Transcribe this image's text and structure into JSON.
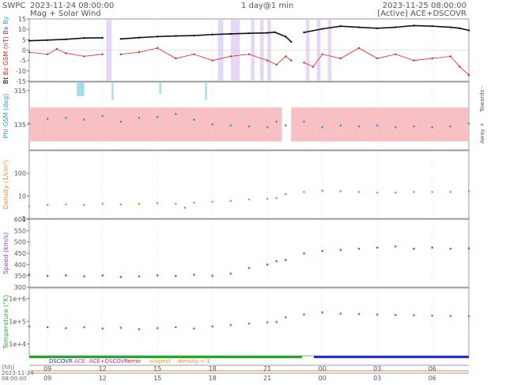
{
  "header": {
    "org": "SWPC",
    "start_time": "2023-11-24 08:00:00",
    "subtitle": "Mag + Solar Wind",
    "span": "1 day@1 min",
    "end_time": "2023-11-25 08:00:00",
    "active_source": "[Active] ACE+DSCOVR"
  },
  "legend": {
    "items": [
      {
        "label": "DSCOVR",
        "color": "#2233cc"
      },
      {
        "label": "ACE",
        "color": "#cc44cc"
      },
      {
        "label": "ACE+DSCOVR",
        "color": "#cc22cc"
      },
      {
        "label": "error",
        "color": "#cc2222"
      },
      {
        "label": "suspect",
        "color": "#dda000"
      },
      {
        "label": "density < 1",
        "color": "#ee8822"
      }
    ]
  },
  "time_axis": {
    "unit_label": "(hh)",
    "start_date": "2023-11-24",
    "start_clock": "08:00:00",
    "tick_labels": [
      "09",
      "12",
      "15",
      "18",
      "21",
      "00",
      "03",
      "06"
    ],
    "tick_hours": [
      1,
      4,
      7,
      10,
      13,
      16,
      19,
      22
    ],
    "total_hours": 24
  },
  "chart_data": [
    {
      "type": "line",
      "panel": "magnetic-field",
      "ylabels": [
        {
          "text": "Bt",
          "color": "#000000"
        },
        {
          "text": "Bz GSM (nT)",
          "color": "#dd2222"
        },
        {
          "text": "Bx",
          "color": "#6644cc"
        },
        {
          "text": "By",
          "color": "#33aadd"
        }
      ],
      "ylim": [
        -15,
        15
      ],
      "yticks": [
        -15,
        -10,
        -5,
        0,
        5,
        10,
        15
      ],
      "series": [
        {
          "name": "Bt",
          "color": "#111111",
          "x": [
            0,
            1,
            2,
            3,
            4,
            4.6,
            5,
            6,
            7,
            8,
            9,
            10,
            11,
            12,
            13,
            13.4,
            14,
            14.3,
            14.8,
            15,
            16,
            17,
            18,
            19,
            20,
            21,
            22,
            23,
            23.5,
            24
          ],
          "y": [
            4.5,
            4.8,
            5.2,
            5.8,
            5.9,
            null,
            5.4,
            6.0,
            6.5,
            6.8,
            7.0,
            7.5,
            7.8,
            8.1,
            8.3,
            8.6,
            6.5,
            4.0,
            null,
            8.5,
            10.2,
            11.5,
            11.0,
            10.5,
            11.0,
            11.8,
            11.5,
            11.0,
            10.5,
            9.5
          ]
        },
        {
          "name": "Bz GSM",
          "color": "#dd2222",
          "x": [
            0,
            1,
            1.5,
            2,
            3,
            4,
            4.6,
            5,
            6,
            7,
            8,
            9,
            10,
            11,
            12,
            13,
            13.5,
            14,
            14.3,
            14.8,
            15,
            15.5,
            16,
            17,
            18,
            19,
            20,
            21,
            22,
            23,
            23.5,
            24
          ],
          "y": [
            -1,
            -2,
            0.5,
            -1.5,
            -3,
            -2,
            null,
            -2,
            -1,
            1,
            -4,
            -2,
            -5,
            -3,
            -2,
            -5,
            -7,
            -3,
            -5,
            null,
            -6,
            -8,
            -2,
            -4,
            1,
            -4,
            -2,
            -5,
            -4,
            -3,
            -8,
            -12
          ]
        }
      ],
      "shaded_intervals": [
        [
          4.2,
          4.5
        ],
        [
          10.3,
          10.6
        ],
        [
          11.0,
          11.5
        ],
        [
          12.1,
          12.3
        ],
        [
          12.6,
          12.8
        ],
        [
          13.0,
          13.2
        ],
        [
          15.1,
          15.3
        ],
        [
          15.7,
          15.9
        ],
        [
          16.3,
          16.5
        ]
      ],
      "gaps": [
        [
          4.6,
          5.0
        ],
        [
          14.3,
          14.8
        ]
      ]
    },
    {
      "type": "scatter",
      "panel": "phi-angle",
      "ylabel": "Phi GSM (deg)",
      "ylim": [
        0,
        360
      ],
      "yticks": [
        135,
        315
      ],
      "right_labels": [
        "Towards -",
        "Away +"
      ],
      "away_band": [
        45,
        225
      ],
      "away_band_color": "#f9c0c4",
      "series": [
        {
          "name": "Phi GSM",
          "color": "#3399cc",
          "x": [
            0,
            1,
            2,
            3,
            4,
            5,
            6,
            7,
            8,
            9,
            10,
            11,
            12,
            13,
            13.5,
            14,
            15,
            16,
            17,
            18,
            19,
            20,
            21,
            22,
            23,
            24
          ],
          "y": [
            140,
            165,
            170,
            160,
            180,
            150,
            170,
            175,
            190,
            160,
            135,
            130,
            125,
            120,
            150,
            130,
            150,
            120,
            130,
            125,
            130,
            120,
            125,
            120,
            125,
            140
          ]
        }
      ],
      "blue_spikes": [
        [
          2.6,
          3.0,
          290
        ],
        [
          4.5,
          4.6,
          270
        ],
        [
          7.1,
          7.2,
          300
        ],
        [
          9.6,
          9.7,
          270
        ]
      ],
      "gaps": [
        [
          13.8,
          14.3
        ]
      ]
    },
    {
      "type": "scatter",
      "panel": "density",
      "ylabel": "Density (1/cm³)",
      "yscale": "log",
      "ylim": [
        1,
        1000
      ],
      "yticks": [
        {
          "value": 1,
          "label": "1"
        },
        {
          "value": 10,
          "label": "10"
        },
        {
          "value": 100,
          "label": "100"
        }
      ],
      "series": [
        {
          "name": "Density",
          "color": "#ee8833",
          "x": [
            0,
            1,
            2,
            3,
            4,
            5,
            6,
            7,
            8,
            8.5,
            9,
            10,
            11,
            12,
            13,
            13.5,
            14,
            15,
            16,
            17,
            18,
            19,
            20,
            21,
            22,
            23,
            24
          ],
          "y": [
            3.5,
            4.0,
            4.2,
            4.0,
            4.5,
            4.2,
            4.5,
            4.8,
            4.5,
            3.0,
            5.0,
            5.5,
            6.0,
            7.0,
            7.5,
            8.0,
            12,
            15,
            17,
            16,
            15,
            14,
            14,
            15,
            15,
            15,
            16
          ]
        }
      ],
      "gaps": [
        [
          13.6,
          14.2
        ]
      ]
    },
    {
      "type": "scatter",
      "panel": "speed",
      "ylabel": "Speed (km/s)",
      "ylim": [
        300,
        600
      ],
      "yticks": [
        300,
        350,
        400,
        450,
        500,
        550,
        600
      ],
      "series": [
        {
          "name": "Speed",
          "color": "#9944cc",
          "x": [
            0,
            1,
            2,
            3,
            4,
            5,
            6,
            7,
            8,
            9,
            10,
            11,
            12,
            13,
            13.5,
            14,
            15,
            16,
            17,
            18,
            19,
            20,
            21,
            22,
            23,
            24
          ],
          "y": [
            355,
            350,
            352,
            348,
            352,
            345,
            348,
            352,
            350,
            355,
            350,
            360,
            385,
            400,
            415,
            420,
            450,
            460,
            465,
            470,
            475,
            480,
            470,
            475,
            470,
            472
          ]
        }
      ],
      "gaps": [
        [
          13.6,
          14.2
        ]
      ]
    },
    {
      "type": "scatter",
      "panel": "temperature",
      "ylabel": "Temperature (°K)",
      "yscale": "log",
      "ylim": [
        3000,
        3000000
      ],
      "yticks": [
        {
          "value": 10000,
          "label": "1e+4"
        },
        {
          "value": 100000,
          "label": "1e+5"
        },
        {
          "value": 1000000,
          "label": "1e+6"
        }
      ],
      "series": [
        {
          "name": "Temperature",
          "color": "#33aa33",
          "x": [
            0,
            1,
            2,
            3,
            4,
            5,
            6,
            7,
            8,
            9,
            10,
            11,
            12,
            13,
            13.5,
            14,
            15,
            16,
            17,
            18,
            19,
            20,
            21,
            22,
            23,
            24
          ],
          "y": [
            60000,
            55000,
            50000,
            55000,
            48000,
            52000,
            45000,
            50000,
            55000,
            48000,
            60000,
            70000,
            80000,
            90000,
            95000,
            150000,
            200000,
            250000,
            220000,
            210000,
            200000,
            190000,
            185000,
            180000,
            175000,
            170000
          ]
        }
      ],
      "gaps": [
        [
          13.6,
          14.2
        ]
      ]
    }
  ]
}
